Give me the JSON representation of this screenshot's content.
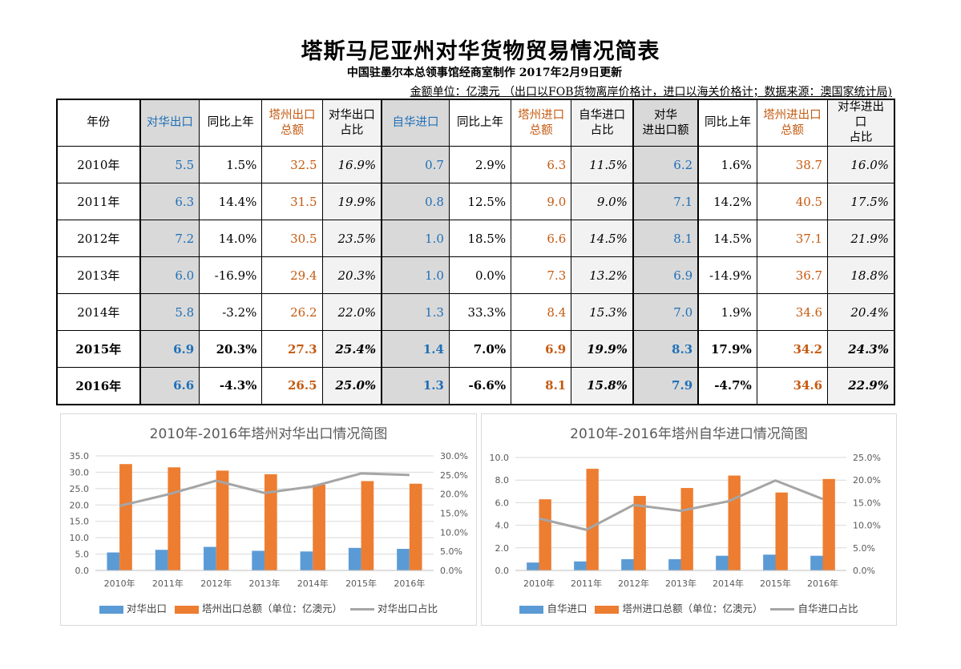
{
  "header": {
    "title": "塔斯马尼亚州对华货物贸易情况简表",
    "subtitle": "中国驻墨尔本总领事馆经商室制作 2017年2月9日更新",
    "note": "金额单位：亿澳元 （出口以FOB货物离岸价格计，进口以海关价格计；数据来源：澳国家统计局)"
  },
  "table": {
    "headers": [
      {
        "l1": "年份",
        "l2": ""
      },
      {
        "l1": "对华出口",
        "l2": ""
      },
      {
        "l1": "同比上年",
        "l2": ""
      },
      {
        "l1": "塔州出口",
        "l2": "总额"
      },
      {
        "l1": "对华出口",
        "l2": "占比"
      },
      {
        "l1": "自华进口",
        "l2": ""
      },
      {
        "l1": "同比上年",
        "l2": ""
      },
      {
        "l1": "塔州进口",
        "l2": "总额"
      },
      {
        "l1": "自华进口",
        "l2": "占比"
      },
      {
        "l1": "对华",
        "l2": "进出口额"
      },
      {
        "l1": "同比上年",
        "l2": ""
      },
      {
        "l1": "塔州进出口",
        "l2": "总额"
      },
      {
        "l1": "对华进出口",
        "l2": "占比"
      }
    ],
    "rows": [
      [
        "2010年",
        "5.5",
        "1.5%",
        "32.5",
        "16.9%",
        "0.7",
        "2.9%",
        "6.3",
        "11.5%",
        "6.2",
        "1.6%",
        "38.7",
        "16.0%"
      ],
      [
        "2011年",
        "6.3",
        "14.4%",
        "31.5",
        "19.9%",
        "0.8",
        "12.5%",
        "9.0",
        "9.0%",
        "7.1",
        "14.2%",
        "40.5",
        "17.5%"
      ],
      [
        "2012年",
        "7.2",
        "14.0%",
        "30.5",
        "23.5%",
        "1.0",
        "18.5%",
        "6.6",
        "14.5%",
        "8.1",
        "14.5%",
        "37.1",
        "21.9%"
      ],
      [
        "2013年",
        "6.0",
        "-16.9%",
        "29.4",
        "20.3%",
        "1.0",
        "0.0%",
        "7.3",
        "13.2%",
        "6.9",
        "-14.9%",
        "36.7",
        "18.8%"
      ],
      [
        "2014年",
        "5.8",
        "-3.2%",
        "26.2",
        "22.0%",
        "1.3",
        "33.3%",
        "8.4",
        "15.3%",
        "7.0",
        "1.9%",
        "34.6",
        "20.4%"
      ],
      [
        "2015年",
        "6.9",
        "20.3%",
        "27.3",
        "25.4%",
        "1.4",
        "7.0%",
        "6.9",
        "19.9%",
        "8.3",
        "17.9%",
        "34.2",
        "24.3%"
      ],
      [
        "2016年",
        "6.6",
        "-4.3%",
        "26.5",
        "25.0%",
        "1.3",
        "-6.6%",
        "8.1",
        "15.8%",
        "7.9",
        "-4.7%",
        "34.6",
        "22.9%"
      ]
    ]
  },
  "colors": {
    "blue_text": "#1f6fb8",
    "orange_text": "#c55a11",
    "bar_blue": "#5b9bd5",
    "bar_orange": "#ed7d31",
    "line_gray": "#a5a5a5"
  },
  "chart_data": [
    {
      "type": "bar",
      "title": "2010年-2016年塔州对华出口情况简图",
      "categories": [
        "2010年",
        "2011年",
        "2012年",
        "2013年",
        "2014年",
        "2015年",
        "2016年"
      ],
      "series": [
        {
          "name": "对华出口",
          "kind": "bar",
          "axis": "left",
          "values": [
            5.5,
            6.3,
            7.2,
            6.0,
            5.8,
            6.9,
            6.6
          ]
        },
        {
          "name": "塔州出口总额（单位：亿澳元）",
          "kind": "bar",
          "axis": "left",
          "values": [
            32.5,
            31.5,
            30.5,
            29.4,
            26.2,
            27.3,
            26.5
          ]
        },
        {
          "name": "对华出口占比",
          "kind": "line",
          "axis": "right",
          "values": [
            16.9,
            19.9,
            23.5,
            20.3,
            22.0,
            25.4,
            25.0
          ]
        }
      ],
      "ylim": [
        0,
        35
      ],
      "yticks": [
        "0.0",
        "5.0",
        "10.0",
        "15.0",
        "20.0",
        "25.0",
        "30.0",
        "35.0"
      ],
      "y2lim": [
        0,
        30
      ],
      "y2ticks": [
        "0.0%",
        "5.0%",
        "10.0%",
        "15.0%",
        "20.0%",
        "25.0%",
        "30.0%"
      ],
      "grid": true,
      "legend": "bottom"
    },
    {
      "type": "bar",
      "title": "2010年-2016年塔州自华进口情况简图",
      "categories": [
        "2010年",
        "2011年",
        "2012年",
        "2013年",
        "2014年",
        "2015年",
        "2016年"
      ],
      "series": [
        {
          "name": "自华进口",
          "kind": "bar",
          "axis": "left",
          "values": [
            0.7,
            0.8,
            1.0,
            1.0,
            1.3,
            1.4,
            1.3
          ]
        },
        {
          "name": "塔州进口总额（单位：亿澳元）",
          "kind": "bar",
          "axis": "left",
          "values": [
            6.3,
            9.0,
            6.6,
            7.3,
            8.4,
            6.9,
            8.1
          ]
        },
        {
          "name": "自华进口占比",
          "kind": "line",
          "axis": "right",
          "values": [
            11.5,
            9.0,
            14.5,
            13.2,
            15.3,
            19.9,
            15.8
          ]
        }
      ],
      "ylim": [
        0,
        10
      ],
      "yticks": [
        "0.0",
        "2.0",
        "4.0",
        "6.0",
        "8.0",
        "10.0"
      ],
      "y2lim": [
        0,
        25
      ],
      "y2ticks": [
        "0.0%",
        "5.0%",
        "10.0%",
        "15.0%",
        "20.0%",
        "25.0%"
      ],
      "grid": true,
      "legend": "bottom"
    }
  ]
}
